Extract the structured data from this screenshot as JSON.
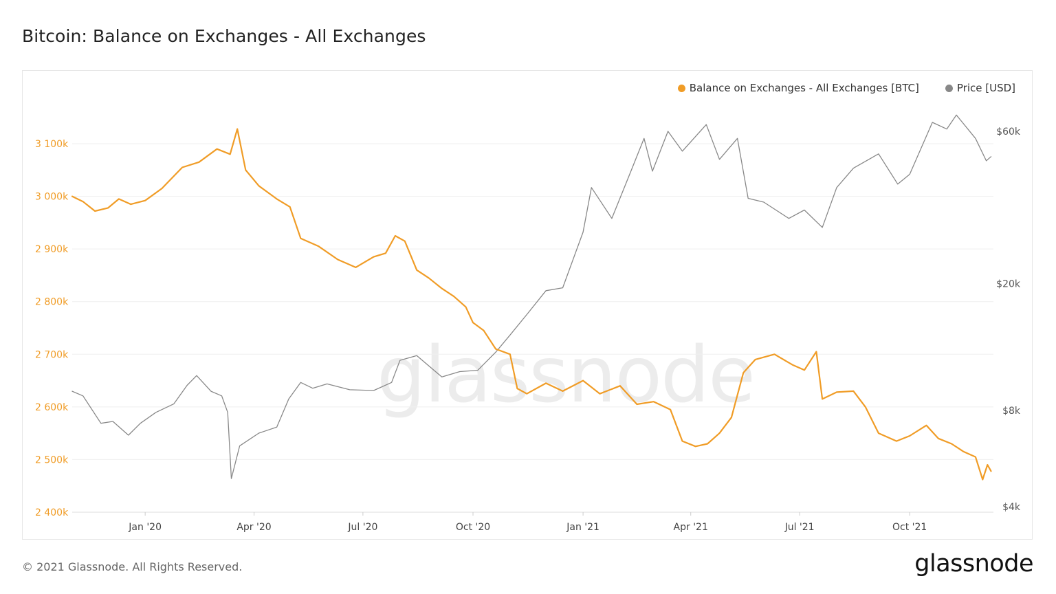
{
  "header": {
    "title": "Bitcoin: Balance on Exchanges - All Exchanges"
  },
  "footer": {
    "copyright": "© 2021 Glassnode. All Rights Reserved.",
    "brand": "glassnode"
  },
  "watermark": "glassnode",
  "colors": {
    "balance": "#f09c26",
    "price": "#888888",
    "grid": "#efefef"
  },
  "chart_data": {
    "type": "line",
    "title": "Bitcoin: Balance on Exchanges - All Exchanges",
    "legend_position": "top-right",
    "grid": true,
    "x_ticks": [
      "Jan '20",
      "Apr '20",
      "Jul '20",
      "Oct '20",
      "Jan '21",
      "Apr '21",
      "Jul '21",
      "Oct '21"
    ],
    "x_tick_dates": [
      "2020-01-01",
      "2020-04-01",
      "2020-07-01",
      "2020-10-01",
      "2021-01-01",
      "2021-04-01",
      "2021-07-01",
      "2021-10-01"
    ],
    "xlim": [
      "2019-11-01",
      "2021-12-10"
    ],
    "left_axis": {
      "ticks": [
        2400000,
        2500000,
        2600000,
        2700000,
        2800000,
        2900000,
        3000000,
        3100000
      ],
      "tick_labels": [
        "2 400k",
        "2 500k",
        "2 600k",
        "2 700k",
        "2 800k",
        "2 900k",
        "3 000k",
        "3 100k"
      ],
      "ylim": [
        2400000,
        3100000
      ]
    },
    "right_axis": {
      "scale": "log",
      "ticks": [
        4000,
        8000,
        20000,
        60000
      ],
      "tick_labels": [
        "$4k",
        "$8k",
        "$20k",
        "$60k"
      ],
      "ylim": [
        4000,
        60000
      ]
    },
    "series": [
      {
        "name": "Balance on Exchanges - All Exchanges [BTC]",
        "axis": "left",
        "color": "#f09c26",
        "points": [
          [
            "2019-11-01",
            3000000
          ],
          [
            "2019-11-10",
            2990000
          ],
          [
            "2019-11-20",
            2972000
          ],
          [
            "2019-12-01",
            2978000
          ],
          [
            "2019-12-10",
            2995000
          ],
          [
            "2019-12-20",
            2985000
          ],
          [
            "2020-01-01",
            2992000
          ],
          [
            "2020-01-15",
            3015000
          ],
          [
            "2020-02-01",
            3055000
          ],
          [
            "2020-02-15",
            3065000
          ],
          [
            "2020-03-01",
            3090000
          ],
          [
            "2020-03-12",
            3080000
          ],
          [
            "2020-03-18",
            3128000
          ],
          [
            "2020-03-25",
            3050000
          ],
          [
            "2020-04-05",
            3020000
          ],
          [
            "2020-04-20",
            2995000
          ],
          [
            "2020-05-01",
            2980000
          ],
          [
            "2020-05-10",
            2920000
          ],
          [
            "2020-05-25",
            2905000
          ],
          [
            "2020-06-10",
            2880000
          ],
          [
            "2020-06-25",
            2865000
          ],
          [
            "2020-07-10",
            2885000
          ],
          [
            "2020-07-20",
            2892000
          ],
          [
            "2020-07-28",
            2925000
          ],
          [
            "2020-08-05",
            2915000
          ],
          [
            "2020-08-15",
            2860000
          ],
          [
            "2020-08-25",
            2845000
          ],
          [
            "2020-09-05",
            2825000
          ],
          [
            "2020-09-15",
            2810000
          ],
          [
            "2020-09-25",
            2790000
          ],
          [
            "2020-10-01",
            2760000
          ],
          [
            "2020-10-10",
            2745000
          ],
          [
            "2020-10-20",
            2710000
          ],
          [
            "2020-11-01",
            2700000
          ],
          [
            "2020-11-07",
            2635000
          ],
          [
            "2020-11-15",
            2625000
          ],
          [
            "2020-12-01",
            2645000
          ],
          [
            "2020-12-15",
            2630000
          ],
          [
            "2021-01-01",
            2650000
          ],
          [
            "2021-01-15",
            2625000
          ],
          [
            "2021-02-01",
            2640000
          ],
          [
            "2021-02-15",
            2605000
          ],
          [
            "2021-03-01",
            2610000
          ],
          [
            "2021-03-15",
            2595000
          ],
          [
            "2021-03-25",
            2535000
          ],
          [
            "2021-04-05",
            2525000
          ],
          [
            "2021-04-15",
            2530000
          ],
          [
            "2021-04-25",
            2550000
          ],
          [
            "2021-05-05",
            2580000
          ],
          [
            "2021-05-15",
            2665000
          ],
          [
            "2021-05-25",
            2690000
          ],
          [
            "2021-06-10",
            2700000
          ],
          [
            "2021-06-25",
            2680000
          ],
          [
            "2021-07-05",
            2670000
          ],
          [
            "2021-07-15",
            2705000
          ],
          [
            "2021-07-20",
            2615000
          ],
          [
            "2021-08-01",
            2628000
          ],
          [
            "2021-08-15",
            2630000
          ],
          [
            "2021-08-25",
            2600000
          ],
          [
            "2021-09-05",
            2550000
          ],
          [
            "2021-09-20",
            2535000
          ],
          [
            "2021-10-01",
            2545000
          ],
          [
            "2021-10-15",
            2565000
          ],
          [
            "2021-10-25",
            2540000
          ],
          [
            "2021-11-05",
            2530000
          ],
          [
            "2021-11-15",
            2515000
          ],
          [
            "2021-11-25",
            2505000
          ],
          [
            "2021-12-01",
            2462000
          ],
          [
            "2021-12-05",
            2490000
          ],
          [
            "2021-12-08",
            2478000
          ]
        ]
      },
      {
        "name": "Price [USD]",
        "axis": "right",
        "color": "#888888",
        "points": [
          [
            "2019-11-01",
            9200
          ],
          [
            "2019-11-10",
            8900
          ],
          [
            "2019-11-25",
            7300
          ],
          [
            "2019-12-05",
            7400
          ],
          [
            "2019-12-18",
            6700
          ],
          [
            "2019-12-28",
            7300
          ],
          [
            "2020-01-10",
            7900
          ],
          [
            "2020-01-25",
            8400
          ],
          [
            "2020-02-05",
            9600
          ],
          [
            "2020-02-13",
            10300
          ],
          [
            "2020-02-25",
            9200
          ],
          [
            "2020-03-05",
            8900
          ],
          [
            "2020-03-10",
            7900
          ],
          [
            "2020-03-13",
            4900
          ],
          [
            "2020-03-20",
            6200
          ],
          [
            "2020-04-05",
            6800
          ],
          [
            "2020-04-20",
            7100
          ],
          [
            "2020-04-30",
            8700
          ],
          [
            "2020-05-10",
            9800
          ],
          [
            "2020-05-20",
            9400
          ],
          [
            "2020-06-01",
            9700
          ],
          [
            "2020-06-20",
            9300
          ],
          [
            "2020-07-10",
            9250
          ],
          [
            "2020-07-25",
            9800
          ],
          [
            "2020-08-01",
            11500
          ],
          [
            "2020-08-15",
            11900
          ],
          [
            "2020-09-05",
            10200
          ],
          [
            "2020-09-20",
            10600
          ],
          [
            "2020-10-05",
            10700
          ],
          [
            "2020-10-20",
            12200
          ],
          [
            "2020-11-01",
            13800
          ],
          [
            "2020-11-15",
            16000
          ],
          [
            "2020-12-01",
            19000
          ],
          [
            "2020-12-15",
            19400
          ],
          [
            "2021-01-01",
            29000
          ],
          [
            "2021-01-08",
            40000
          ],
          [
            "2021-01-25",
            32000
          ],
          [
            "2021-02-10",
            45000
          ],
          [
            "2021-02-21",
            57000
          ],
          [
            "2021-02-28",
            45000
          ],
          [
            "2021-03-13",
            60000
          ],
          [
            "2021-03-25",
            52000
          ],
          [
            "2021-04-14",
            63000
          ],
          [
            "2021-04-25",
            49000
          ],
          [
            "2021-05-10",
            57000
          ],
          [
            "2021-05-19",
            37000
          ],
          [
            "2021-06-01",
            36000
          ],
          [
            "2021-06-22",
            32000
          ],
          [
            "2021-07-05",
            34000
          ],
          [
            "2021-07-20",
            30000
          ],
          [
            "2021-08-01",
            40000
          ],
          [
            "2021-08-15",
            46000
          ],
          [
            "2021-09-05",
            51000
          ],
          [
            "2021-09-21",
            41000
          ],
          [
            "2021-10-01",
            44000
          ],
          [
            "2021-10-20",
            64000
          ],
          [
            "2021-11-01",
            61000
          ],
          [
            "2021-11-09",
            67500
          ],
          [
            "2021-11-25",
            57000
          ],
          [
            "2021-12-04",
            48500
          ],
          [
            "2021-12-08",
            50000
          ]
        ]
      }
    ]
  }
}
